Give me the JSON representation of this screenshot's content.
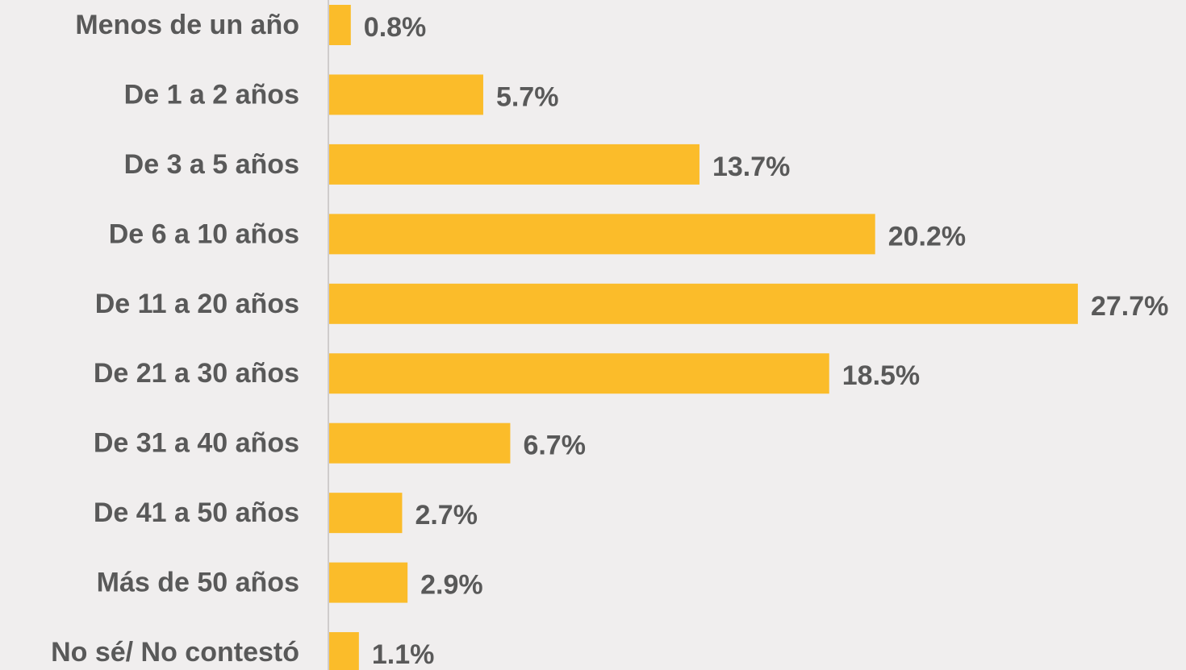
{
  "chart_data": {
    "type": "bar",
    "orientation": "horizontal",
    "categories": [
      "Menos de un año",
      "De 1 a 2 años",
      "De 3 a 5 años",
      "De 6 a 10 años",
      "De 11 a 20 años",
      "De 21 a 30 años",
      "De 31 a 40 años",
      "De 41 a 50 años",
      "Más de 50 años",
      "No sé/ No contestó"
    ],
    "values": [
      0.8,
      5.7,
      13.7,
      20.2,
      27.7,
      18.5,
      6.7,
      2.7,
      2.9,
      1.1
    ],
    "value_labels": [
      "0.8%",
      "5.7%",
      "13.7%",
      "20.2%",
      "27.7%",
      "18.5%",
      "6.7%",
      "2.7%",
      "2.9%",
      "1.1%"
    ],
    "color": "#fbbc2a"
  }
}
